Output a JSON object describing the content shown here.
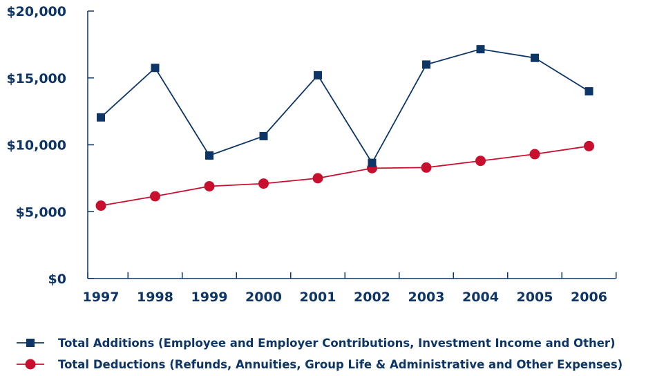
{
  "chart_data": {
    "type": "line",
    "title": "",
    "xlabel": "",
    "ylabel": "",
    "categories": [
      "1997",
      "1998",
      "1999",
      "2000",
      "2001",
      "2002",
      "2003",
      "2004",
      "2005",
      "2006"
    ],
    "ylim": [
      0,
      20000
    ],
    "yticks": [
      0,
      5000,
      10000,
      15000,
      20000
    ],
    "ytick_labels": [
      "$0",
      "$5,000",
      "$10,000",
      "$15,000",
      "$20,000"
    ],
    "grid": false,
    "legend_position": "bottom",
    "series": [
      {
        "name": "Total Additions (Employee and Employer Contributions, Investment Income and Other)",
        "marker": "square",
        "color": "#0d3566",
        "values": [
          12050,
          15750,
          9200,
          10650,
          15200,
          8650,
          16000,
          17150,
          16500,
          14000
        ]
      },
      {
        "name": "Total Deductions (Refunds, Annuities, Group Life & Administrative and Other Expenses)",
        "marker": "circle",
        "color": "#c8102e",
        "values": [
          5450,
          6150,
          6900,
          7100,
          7500,
          8250,
          8300,
          8800,
          9300,
          9900
        ]
      }
    ]
  }
}
